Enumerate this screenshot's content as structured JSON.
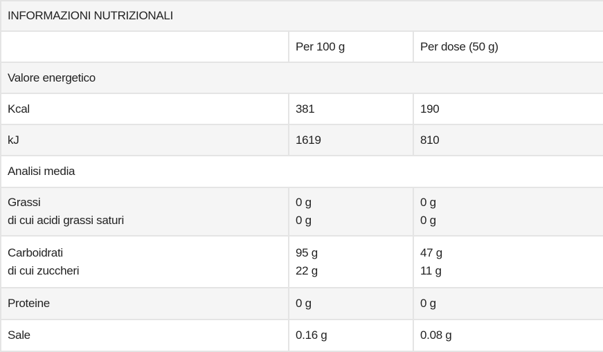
{
  "title": "INFORMAZIONI NUTRIZIONALI",
  "columns": [
    "",
    "Per 100 g",
    "Per dose (50 g)"
  ],
  "rows": [
    {
      "label": "Valore energetico",
      "section": true
    },
    {
      "label": "Kcal",
      "per100": "381",
      "perdose": "190"
    },
    {
      "label": "kJ",
      "per100": "1619",
      "perdose": "810"
    },
    {
      "label": "Analisi media",
      "section": true
    },
    {
      "label": "Grassi",
      "sub": "di cui acidi grassi saturi",
      "per100": "0 g",
      "per100_sub": "0 g",
      "perdose": "0 g",
      "perdose_sub": "0 g"
    },
    {
      "label": "Carboidrati",
      "sub": "di cui zuccheri",
      "per100": "95 g",
      "per100_sub": "22 g",
      "perdose": "47 g",
      "perdose_sub": "11 g"
    },
    {
      "label": "Proteine",
      "per100": "0 g",
      "perdose": "0 g"
    },
    {
      "label": "Sale",
      "per100": "0.16 g",
      "perdose": "0.08 g"
    }
  ]
}
